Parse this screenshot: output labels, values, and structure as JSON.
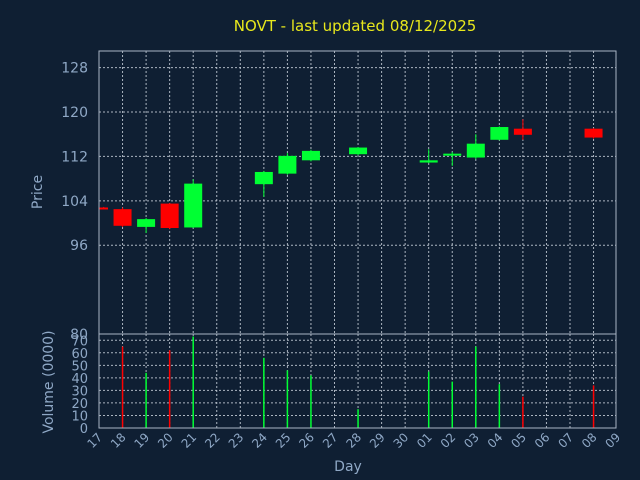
{
  "chart_data": {
    "type": "candlestick",
    "title": "NOVT - last updated 08/12/2025",
    "ylabel": "Price",
    "volume_ylabel": "Volume (0000)",
    "xlabel": "Day",
    "grid": true,
    "price_ylim": [
      80,
      131
    ],
    "price_yticks": [
      80,
      96,
      104,
      112,
      120,
      128
    ],
    "volume_ylim": [
      0,
      75
    ],
    "volume_yticks": [
      0,
      10,
      20,
      30,
      40,
      50,
      60,
      70
    ],
    "x_tick_labels": [
      "17",
      "18",
      "19",
      "20",
      "21",
      "22",
      "23",
      "24",
      "25",
      "26",
      "27",
      "28",
      "29",
      "30",
      "01",
      "02",
      "03",
      "04",
      "05",
      "06",
      "07",
      "08",
      "09"
    ],
    "colors": {
      "up": "#00ff33",
      "down": "#ff0000",
      "background": "#0f1f33",
      "title": "#e8e81c",
      "axis_text": "#8fa8c6"
    },
    "candles": [
      {
        "x": 0.2,
        "open": 102.8,
        "high": 102.9,
        "low": 102.5,
        "close": 102.6,
        "volume": 0
      },
      {
        "x": 1,
        "open": 102.5,
        "high": 102.8,
        "low": 99.3,
        "close": 99.5,
        "volume": 65
      },
      {
        "x": 2,
        "open": 99.3,
        "high": 100.9,
        "low": 98.2,
        "close": 100.7,
        "volume": 44
      },
      {
        "x": 3,
        "open": 103.5,
        "high": 103.6,
        "low": 98.9,
        "close": 99.1,
        "volume": 62
      },
      {
        "x": 4,
        "open": 99.2,
        "high": 107.9,
        "low": 99.1,
        "close": 107.1,
        "volume": 73
      },
      {
        "x": 7,
        "open": 107.0,
        "high": 109.4,
        "low": 104.7,
        "close": 109.2,
        "volume": 56
      },
      {
        "x": 8,
        "open": 108.9,
        "high": 112.6,
        "low": 108.7,
        "close": 112.1,
        "volume": 46
      },
      {
        "x": 9,
        "open": 111.3,
        "high": 113.2,
        "low": 111.1,
        "close": 113.0,
        "volume": 42
      },
      {
        "x": 11,
        "open": 112.4,
        "high": 113.7,
        "low": 112.2,
        "close": 113.6,
        "volume": 15
      },
      {
        "x": 14,
        "open": 110.9,
        "high": 113.3,
        "low": 110.8,
        "close": 111.3,
        "volume": 45
      },
      {
        "x": 15,
        "open": 112.3,
        "high": 112.8,
        "low": 110.3,
        "close": 112.5,
        "volume": 37
      },
      {
        "x": 16,
        "open": 111.8,
        "high": 116.0,
        "low": 111.5,
        "close": 114.3,
        "volume": 65
      },
      {
        "x": 17,
        "open": 115.0,
        "high": 117.4,
        "low": 114.9,
        "close": 117.3,
        "volume": 35
      },
      {
        "x": 18,
        "open": 117.0,
        "high": 118.7,
        "low": 115.0,
        "close": 115.9,
        "volume": 25
      },
      {
        "x": 21,
        "open": 117.0,
        "high": 117.1,
        "low": 115.2,
        "close": 115.4,
        "volume": 34
      }
    ]
  }
}
